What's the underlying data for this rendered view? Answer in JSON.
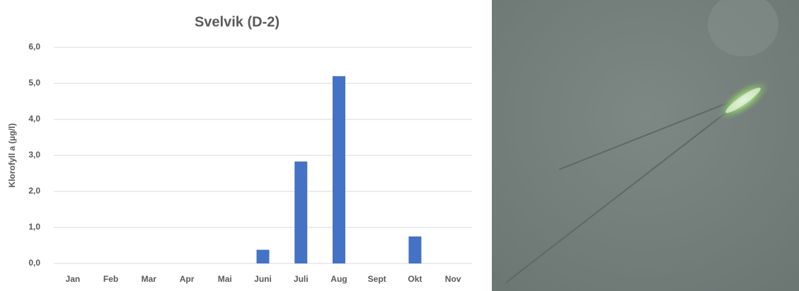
{
  "chart_data": {
    "type": "bar",
    "title": "Svelvik (D-2)",
    "y_label": "Klorofyll a (µg/l)",
    "categories": [
      "Jan",
      "Feb",
      "Mar",
      "Apr",
      "Mai",
      "Juni",
      "Juli",
      "Aug",
      "Sept",
      "Okt",
      "Nov"
    ],
    "values": [
      0,
      0,
      0,
      0,
      0,
      0.38,
      2.83,
      5.2,
      0,
      0.75,
      0
    ],
    "color": "#4472c4",
    "ylim": [
      0,
      6
    ],
    "yticks": [
      {
        "value": 0,
        "label": "0,0"
      },
      {
        "value": 1,
        "label": "1,0"
      },
      {
        "value": 2,
        "label": "2,0"
      },
      {
        "value": 3,
        "label": "3,0"
      },
      {
        "value": 4,
        "label": "4,0"
      },
      {
        "value": 5,
        "label": "5,0"
      },
      {
        "value": 6,
        "label": "6,0"
      }
    ],
    "grid": true
  }
}
